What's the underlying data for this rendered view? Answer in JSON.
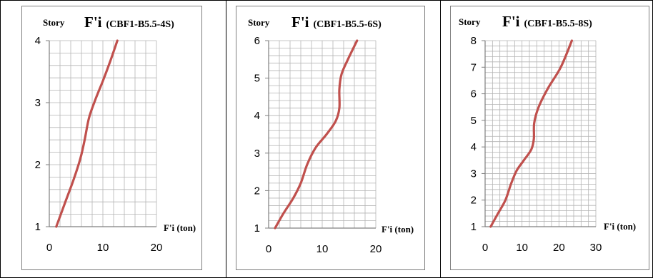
{
  "chart_data": [
    {
      "type": "line",
      "title_main": "F'i",
      "title_sub": "(CBF1-B5.5-4S)",
      "ylabel": "Story",
      "xlabel": "F'i (ton)",
      "xlim": [
        0,
        20
      ],
      "ylim": [
        1,
        4
      ],
      "xticks": [
        "0",
        "10",
        "20"
      ],
      "yticks": [
        "1",
        "2",
        "3",
        "4"
      ],
      "x": [
        1.3,
        3.0,
        4.5,
        5.8,
        6.6,
        7.4,
        8.6,
        10.0,
        11.3,
        12.7
      ],
      "y": [
        1.0,
        1.4,
        1.75,
        2.1,
        2.4,
        2.75,
        3.05,
        3.35,
        3.65,
        4.0
      ],
      "color": "#c0504d",
      "grid": true
    },
    {
      "type": "line",
      "title_main": "F'i",
      "title_sub": "(CBF1-B5.5-6S)",
      "ylabel": "Story",
      "xlabel": "F'i (ton)",
      "xlim": [
        0,
        20
      ],
      "ylim": [
        1,
        6
      ],
      "xticks": [
        "0",
        "10",
        "20"
      ],
      "yticks": [
        "1",
        "2",
        "3",
        "4",
        "5",
        "6"
      ],
      "x": [
        1.2,
        2.8,
        4.6,
        6.0,
        7.2,
        8.8,
        10.8,
        12.5,
        13.2,
        13.2,
        13.6,
        14.8,
        16.5
      ],
      "y": [
        1.0,
        1.4,
        1.8,
        2.2,
        2.7,
        3.15,
        3.5,
        3.85,
        4.2,
        4.7,
        5.1,
        5.5,
        6.0
      ],
      "color": "#c0504d",
      "grid": true
    },
    {
      "type": "line",
      "title_main": "F'i",
      "title_sub": "(CBF1-B5.5-8S)",
      "ylabel": "Story",
      "xlabel": "F'i (ton)",
      "xlim": [
        0,
        30
      ],
      "ylim": [
        1,
        8
      ],
      "xticks": [
        "0",
        "10",
        "20",
        "30"
      ],
      "yticks": [
        "1",
        "2",
        "3",
        "4",
        "5",
        "6",
        "7",
        "8"
      ],
      "x": [
        1.5,
        3.5,
        5.5,
        7.0,
        8.5,
        10.5,
        12.5,
        13.2,
        13.3,
        14.5,
        17.0,
        20.5,
        23.5
      ],
      "y": [
        1.0,
        1.5,
        2.0,
        2.6,
        3.1,
        3.5,
        3.9,
        4.3,
        4.9,
        5.5,
        6.2,
        7.0,
        8.0
      ],
      "color": "#c0504d",
      "grid": true
    }
  ]
}
